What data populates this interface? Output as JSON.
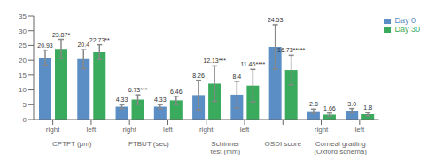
{
  "chart_data": {
    "type": "bar",
    "categories": [
      "right",
      "left",
      "right",
      "left",
      "right",
      "left",
      null,
      "right",
      "left"
    ],
    "category_groups": [
      {
        "label": "CPTFT (μm)",
        "size": 2
      },
      {
        "label": "FTBUT (sec)",
        "size": 2
      },
      {
        "label": "Schirmer test (mm)",
        "size": 2
      },
      {
        "label": "OSDI score",
        "size": 1
      },
      {
        "label": "Corneal grading (Oxford schema)",
        "size": 2
      }
    ],
    "series": [
      {
        "name": "Day 0",
        "color": "#5b8ec4",
        "values": [
          20.93,
          20.4,
          4.33,
          4.33,
          8.26,
          8.4,
          24.53,
          2.8,
          3.0
        ],
        "errors": [
          2.5,
          3.2,
          0.7,
          0.7,
          5.0,
          4.5,
          7.5,
          0.7,
          0.7
        ],
        "value_labels": [
          "20.93",
          "20.4",
          "4.33",
          "4.33",
          "8.26",
          "8.4",
          "24.53",
          "2.8",
          "3.0"
        ]
      },
      {
        "name": "Day 30",
        "color": "#3aaa5c",
        "values": [
          23.87,
          22.73,
          6.73,
          6.46,
          12.13,
          11.46,
          16.73,
          1.66,
          1.8
        ],
        "errors": [
          3.2,
          2.5,
          1.6,
          1.4,
          6.0,
          5.5,
          5.0,
          0.5,
          0.5
        ],
        "value_labels": [
          "23.87*",
          "22.73**",
          "6.73***",
          "6.46",
          "12.13***",
          "11.46****",
          "16.73*****",
          "1.66",
          "1.8"
        ]
      }
    ],
    "ylim": [
      0,
      35
    ],
    "yticks": [
      0,
      5,
      10,
      15,
      20,
      25,
      30,
      35
    ],
    "data_labels": true,
    "legend": "upper right",
    "grid": false
  }
}
